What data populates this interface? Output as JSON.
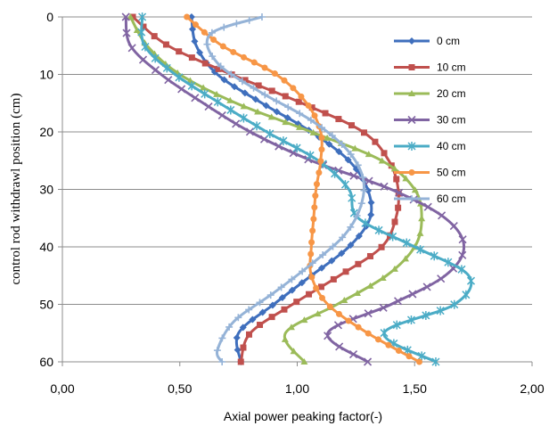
{
  "chart_data": {
    "type": "line",
    "xlabel": "Axial power peaking factor(-)",
    "ylabel": "control rod withdrawl  position (cm)",
    "xlim": [
      0.0,
      2.0
    ],
    "ylim": [
      0,
      60
    ],
    "y_inverted": true,
    "xticks": [
      "0,00",
      "0,50",
      "1,00",
      "1,50",
      "2,00"
    ],
    "yticks": [
      "0",
      "10",
      "20",
      "30",
      "40",
      "50",
      "60"
    ],
    "grid": "horizontal",
    "legend_position": "right",
    "series": [
      {
        "name": "0 cm",
        "color": "#3f6fbd",
        "marker": "diamond",
        "points": [
          [
            0.55,
            0
          ],
          [
            0.57,
            5
          ],
          [
            0.66,
            10
          ],
          [
            0.85,
            15
          ],
          [
            1.06,
            20
          ],
          [
            1.22,
            25
          ],
          [
            1.3,
            30
          ],
          [
            1.31,
            35
          ],
          [
            1.22,
            40
          ],
          [
            1.06,
            45
          ],
          [
            0.9,
            50
          ],
          [
            0.75,
            55
          ],
          [
            0.76,
            60
          ]
        ]
      },
      {
        "name": "10 cm",
        "color": "#c0504d",
        "marker": "square",
        "points": [
          [
            0.3,
            0
          ],
          [
            0.45,
            5
          ],
          [
            0.72,
            10
          ],
          [
            1.02,
            15
          ],
          [
            1.28,
            20
          ],
          [
            1.39,
            25
          ],
          [
            1.43,
            30
          ],
          [
            1.42,
            35
          ],
          [
            1.36,
            40
          ],
          [
            1.18,
            45
          ],
          [
            0.98,
            50
          ],
          [
            0.8,
            55
          ],
          [
            0.76,
            60
          ]
        ]
      },
      {
        "name": "20 cm",
        "color": "#9bbb59",
        "marker": "triangle",
        "points": [
          [
            0.29,
            0
          ],
          [
            0.36,
            5
          ],
          [
            0.5,
            10
          ],
          [
            0.74,
            15
          ],
          [
            1.06,
            20
          ],
          [
            1.36,
            25
          ],
          [
            1.5,
            30
          ],
          [
            1.53,
            35
          ],
          [
            1.5,
            40
          ],
          [
            1.38,
            45
          ],
          [
            1.17,
            50
          ],
          [
            0.95,
            55
          ],
          [
            1.03,
            60
          ]
        ]
      },
      {
        "name": "30 cm",
        "color": "#8064a2",
        "marker": "x",
        "points": [
          [
            0.27,
            0
          ],
          [
            0.29,
            5
          ],
          [
            0.42,
            10
          ],
          [
            0.6,
            15
          ],
          [
            0.8,
            20
          ],
          [
            1.06,
            25
          ],
          [
            1.4,
            30
          ],
          [
            1.63,
            35
          ],
          [
            1.71,
            40
          ],
          [
            1.63,
            45
          ],
          [
            1.4,
            50
          ],
          [
            1.13,
            55
          ],
          [
            1.3,
            60
          ]
        ]
      },
      {
        "name": "40 cm",
        "color": "#4bacc6",
        "marker": "star",
        "points": [
          [
            0.34,
            0
          ],
          [
            0.35,
            5
          ],
          [
            0.48,
            10
          ],
          [
            0.67,
            15
          ],
          [
            0.87,
            20
          ],
          [
            1.09,
            25
          ],
          [
            1.22,
            30
          ],
          [
            1.26,
            35
          ],
          [
            1.5,
            40
          ],
          [
            1.73,
            45
          ],
          [
            1.67,
            50
          ],
          [
            1.37,
            55
          ],
          [
            1.59,
            60
          ]
        ]
      },
      {
        "name": "50 cm",
        "color": "#f79646",
        "marker": "circle",
        "points": [
          [
            0.53,
            0
          ],
          [
            0.68,
            5
          ],
          [
            0.91,
            10
          ],
          [
            1.04,
            15
          ],
          [
            1.1,
            20
          ],
          [
            1.1,
            25
          ],
          [
            1.08,
            30
          ],
          [
            1.07,
            35
          ],
          [
            1.06,
            40
          ],
          [
            1.06,
            45
          ],
          [
            1.13,
            50
          ],
          [
            1.3,
            55
          ],
          [
            1.52,
            60
          ]
        ]
      },
      {
        "name": "60 cm",
        "color": "#95b3d7",
        "marker": "plus",
        "points": [
          [
            0.85,
            0
          ],
          [
            0.63,
            3
          ],
          [
            0.66,
            8
          ],
          [
            0.84,
            13
          ],
          [
            1.06,
            18
          ],
          [
            1.21,
            23
          ],
          [
            1.28,
            28
          ],
          [
            1.27,
            33
          ],
          [
            1.2,
            38
          ],
          [
            1.06,
            43
          ],
          [
            0.9,
            48
          ],
          [
            0.73,
            53
          ],
          [
            0.66,
            58
          ],
          [
            0.68,
            60
          ]
        ]
      }
    ]
  }
}
